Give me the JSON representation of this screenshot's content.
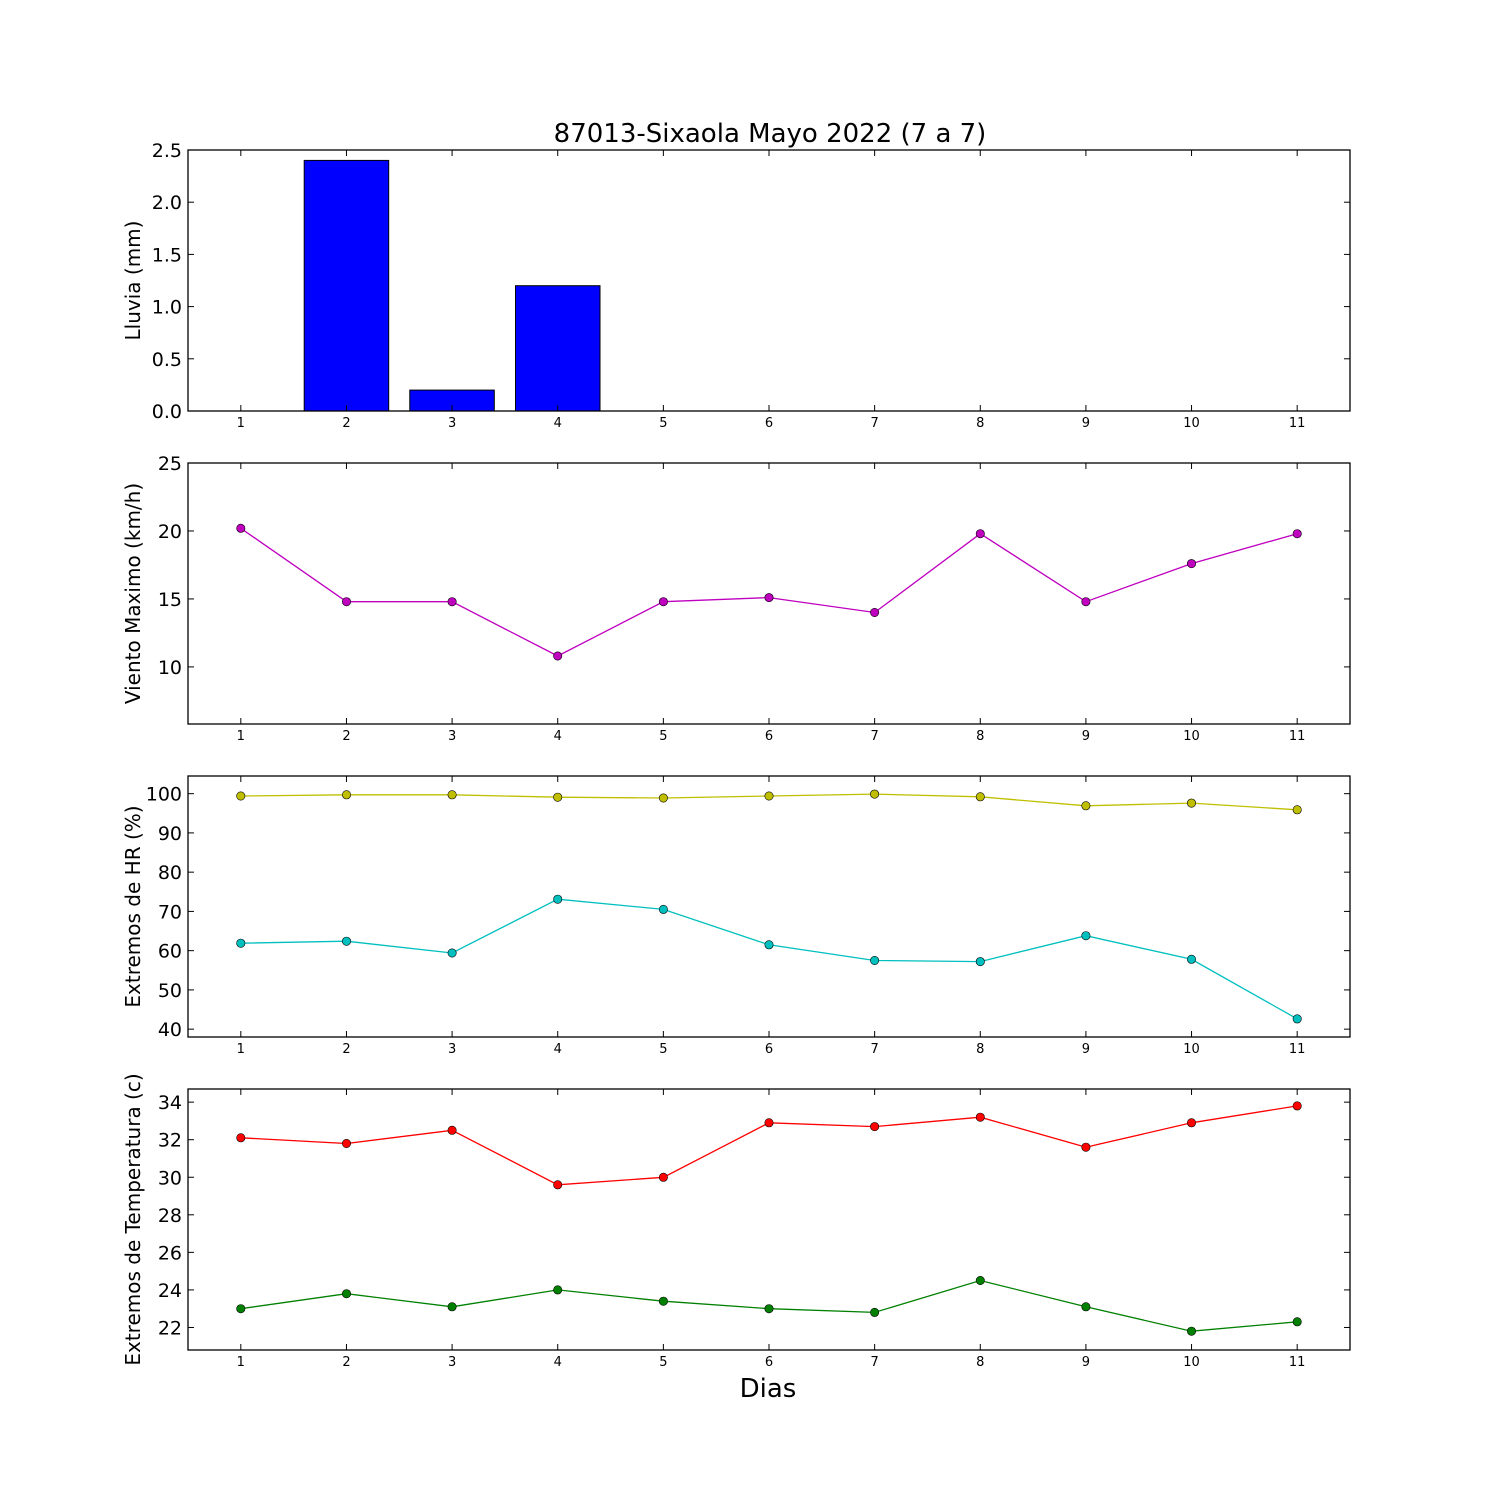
{
  "title": "87013-Sixaola Mayo 2022  (7 a 7)",
  "xlabel": "Dias",
  "chart_data": [
    {
      "type": "bar",
      "ylabel": "Lluvia (mm)",
      "x": [
        1,
        2,
        3,
        4,
        5,
        6,
        7,
        8,
        9,
        10,
        11
      ],
      "xlim": [
        0.5,
        11.5
      ],
      "ylim": [
        0,
        2.5
      ],
      "yticks": [
        "0.0",
        "0.5",
        "1.0",
        "1.5",
        "2.0",
        "2.5"
      ],
      "series": [
        {
          "values": [
            0,
            2.4,
            0.2,
            1.2,
            0,
            0,
            0,
            0,
            0,
            0,
            0
          ],
          "color": "#0000ff"
        }
      ],
      "grid": false
    },
    {
      "type": "line",
      "ylabel": "Viento Maximo (km/h)",
      "x": [
        1,
        2,
        3,
        4,
        5,
        6,
        7,
        8,
        9,
        10,
        11
      ],
      "xlim": [
        0.5,
        11.5
      ],
      "ylim": [
        5.8,
        25
      ],
      "yticks": [
        "10",
        "15",
        "20",
        "25"
      ],
      "series": [
        {
          "values": [
            20.2,
            14.8,
            14.8,
            10.8,
            14.8,
            15.1,
            14.0,
            19.8,
            14.8,
            17.6,
            19.8
          ],
          "color": "#bf00bf"
        }
      ],
      "grid": false
    },
    {
      "type": "line",
      "ylabel": "Extremos de HR (%)",
      "x": [
        1,
        2,
        3,
        4,
        5,
        6,
        7,
        8,
        9,
        10,
        11
      ],
      "xlim": [
        0.5,
        11.5
      ],
      "ylim": [
        38,
        104.5
      ],
      "yticks": [
        "40",
        "50",
        "60",
        "70",
        "80",
        "90",
        "100"
      ],
      "series": [
        {
          "values": [
            99.4,
            99.7,
            99.7,
            99.1,
            98.9,
            99.4,
            99.9,
            99.2,
            96.9,
            97.6,
            95.9
          ],
          "color": "#bfbf00"
        },
        {
          "values": [
            61.9,
            62.4,
            59.4,
            73.1,
            70.5,
            61.5,
            57.5,
            57.2,
            63.8,
            57.8,
            42.6
          ],
          "color": "#00bfbf"
        }
      ],
      "grid": false
    },
    {
      "type": "line",
      "ylabel": "Extremos de Temperatura (c)",
      "x": [
        1,
        2,
        3,
        4,
        5,
        6,
        7,
        8,
        9,
        10,
        11
      ],
      "xlim": [
        0.5,
        11.5
      ],
      "ylim": [
        20.8,
        34.7
      ],
      "yticks": [
        "22",
        "24",
        "26",
        "28",
        "30",
        "32",
        "34"
      ],
      "series": [
        {
          "values": [
            32.1,
            31.8,
            32.5,
            29.6,
            30.0,
            32.9,
            32.7,
            33.2,
            31.6,
            32.9,
            33.8
          ],
          "color": "#ff0000"
        },
        {
          "values": [
            23.0,
            23.8,
            23.1,
            24.0,
            23.4,
            23.0,
            22.8,
            24.5,
            23.1,
            21.8,
            22.3
          ],
          "color": "#008000"
        }
      ],
      "grid": false
    }
  ]
}
